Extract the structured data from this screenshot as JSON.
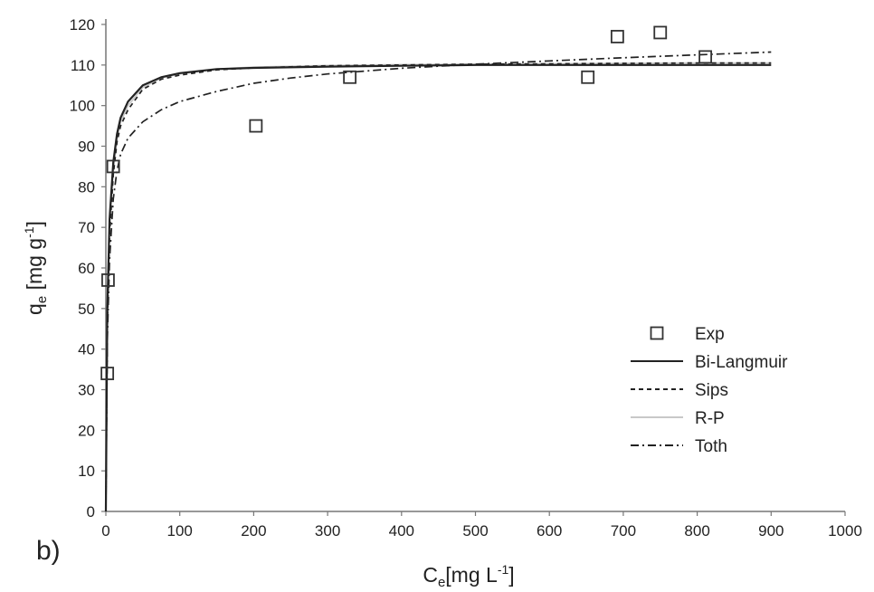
{
  "panel_label": "b)",
  "chart_data": {
    "type": "scatter",
    "xlabel": "C",
    "xlabel_sub": "e",
    "xlabel_unit": "[mg L",
    "xlabel_sup": "-1",
    "xlabel_close": "]",
    "ylabel": "q",
    "ylabel_sub": "e",
    "ylabel_unit": " [mg g",
    "ylabel_sup": "-1",
    "ylabel_close": "]",
    "xlim": [
      0,
      1000
    ],
    "ylim": [
      0,
      120
    ],
    "xticks": [
      0,
      100,
      200,
      300,
      400,
      500,
      600,
      700,
      800,
      900,
      1000
    ],
    "yticks": [
      0,
      10,
      20,
      30,
      40,
      50,
      60,
      70,
      80,
      90,
      100,
      110,
      120
    ],
    "grid": false,
    "legend_position": "right-middle",
    "series": [
      {
        "name": "Exp",
        "kind": "points",
        "color": "#333333",
        "x": [
          2,
          3,
          10,
          203,
          330,
          652,
          692,
          750,
          811
        ],
        "y": [
          34,
          57,
          85,
          95,
          107,
          107,
          117,
          118,
          112
        ]
      },
      {
        "name": "Bi-Langmuir",
        "kind": "line",
        "style": "solid",
        "color": "#222222",
        "x": [
          0,
          2,
          5,
          10,
          15,
          20,
          30,
          50,
          75,
          100,
          150,
          200,
          300,
          400,
          500,
          600,
          700,
          800,
          900
        ],
        "y": [
          0,
          50,
          72,
          86,
          93,
          97,
          101,
          105,
          107,
          108,
          109,
          109.3,
          109.6,
          109.8,
          110,
          110,
          110,
          110,
          110
        ]
      },
      {
        "name": "Sips",
        "kind": "line",
        "style": "dashed",
        "color": "#222222",
        "x": [
          0,
          2,
          5,
          10,
          15,
          20,
          30,
          50,
          75,
          100,
          150,
          200,
          300,
          400,
          500,
          600,
          700,
          800,
          900
        ],
        "y": [
          0,
          45,
          68,
          83,
          91,
          95,
          99,
          104,
          106.5,
          107.5,
          108.8,
          109.3,
          109.8,
          110,
          110.2,
          110.3,
          110.4,
          110.5,
          110.5
        ]
      },
      {
        "name": "R-P",
        "kind": "line",
        "style": "solid",
        "color": "#c8c8c8",
        "x": [
          0,
          2,
          5,
          10,
          15,
          20,
          30,
          50,
          75,
          100,
          150,
          200,
          300,
          400,
          500,
          600,
          700,
          800,
          900
        ],
        "y": [
          0,
          48,
          70,
          84,
          92,
          96,
          100,
          104.5,
          106.8,
          107.8,
          109,
          109.5,
          109.9,
          110.1,
          110.2,
          110.3,
          110.4,
          110.5,
          110.5
        ]
      },
      {
        "name": "Toth",
        "kind": "line",
        "style": "dashdot",
        "color": "#222222",
        "x": [
          0,
          2,
          5,
          10,
          15,
          20,
          30,
          50,
          75,
          100,
          150,
          200,
          250,
          300,
          400,
          500,
          600,
          700,
          800,
          900
        ],
        "y": [
          0,
          42,
          62,
          77,
          84,
          88,
          92,
          96,
          99,
          101,
          103.5,
          105.5,
          106.8,
          107.8,
          109.2,
          110.2,
          111,
          111.8,
          112.5,
          113.2
        ]
      }
    ]
  }
}
